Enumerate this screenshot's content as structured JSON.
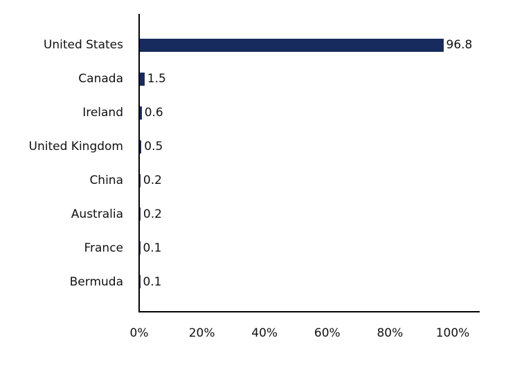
{
  "chart_data": {
    "type": "bar",
    "orientation": "horizontal",
    "title": "",
    "xlabel": "",
    "ylabel": "",
    "categories": [
      "United States",
      "Canada",
      "Ireland",
      "United Kingdom",
      "China",
      "Australia",
      "France",
      "Bermuda"
    ],
    "values": [
      96.8,
      1.5,
      0.6,
      0.5,
      0.2,
      0.2,
      0.1,
      0.1
    ],
    "value_labels": [
      "96.8",
      "1.5",
      "0.6",
      "0.5",
      "0.2",
      "0.2",
      "0.1",
      "0.1"
    ],
    "x_tick_labels": [
      "0%",
      "20%",
      "40%",
      "60%",
      "80%",
      "100%"
    ],
    "x_tick_values": [
      0,
      20,
      40,
      60,
      80,
      100
    ],
    "xlim": [
      0,
      108.8
    ],
    "grid": false,
    "legend_position": "none",
    "colors": {
      "bar_fill": "#182B5E",
      "axis": "#000000",
      "text": "#111111",
      "background": "#FFFFFF"
    }
  }
}
